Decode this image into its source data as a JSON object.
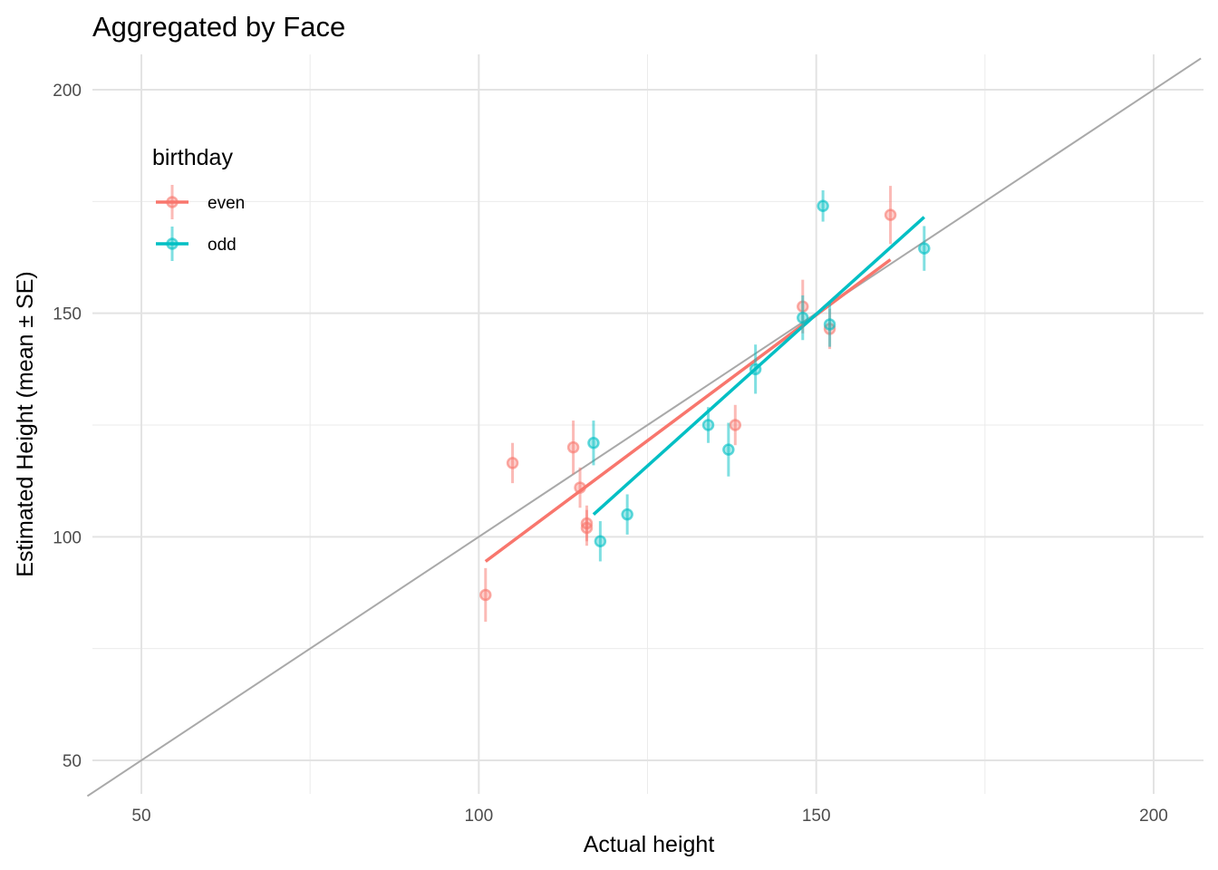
{
  "chart_data": {
    "type": "scatter",
    "title": "Aggregated by Face",
    "xlabel": "Actual height",
    "ylabel": "Estimated Height (mean ± SE)",
    "xlim": [
      42,
      207
    ],
    "ylim": [
      43,
      208
    ],
    "x_ticks": [
      50,
      100,
      150,
      200
    ],
    "y_ticks": [
      50,
      100,
      150,
      200
    ],
    "grid": true,
    "reference_line": "y = x",
    "legend": {
      "title": "birthday",
      "placement": "top-left"
    },
    "series": [
      {
        "name": "even",
        "color": "#F8766D",
        "points": [
          {
            "x": 101,
            "y": 87,
            "se": 6
          },
          {
            "x": 105,
            "y": 116.5,
            "se": 4.5
          },
          {
            "x": 114,
            "y": 120,
            "se": 6
          },
          {
            "x": 115,
            "y": 111,
            "se": 4.5
          },
          {
            "x": 116,
            "y": 103,
            "se": 4
          },
          {
            "x": 116,
            "y": 102,
            "se": 4
          },
          {
            "x": 138,
            "y": 125,
            "se": 4.5
          },
          {
            "x": 148,
            "y": 151.5,
            "se": 6
          },
          {
            "x": 152,
            "y": 146.5,
            "se": 4.5
          },
          {
            "x": 161,
            "y": 172,
            "se": 6.5
          }
        ],
        "fit": [
          [
            101,
            94.5
          ],
          [
            161,
            162
          ]
        ]
      },
      {
        "name": "odd",
        "color": "#00BFC4",
        "points": [
          {
            "x": 117,
            "y": 121,
            "se": 5
          },
          {
            "x": 118,
            "y": 99,
            "se": 4.5
          },
          {
            "x": 122,
            "y": 105,
            "se": 4.5
          },
          {
            "x": 134,
            "y": 125,
            "se": 4
          },
          {
            "x": 137,
            "y": 119.5,
            "se": 6
          },
          {
            "x": 141,
            "y": 137.5,
            "se": 5.5
          },
          {
            "x": 148,
            "y": 149,
            "se": 5
          },
          {
            "x": 151,
            "y": 174,
            "se": 3.5
          },
          {
            "x": 152,
            "y": 147.5,
            "se": 5
          },
          {
            "x": 166,
            "y": 164.5,
            "se": 5
          }
        ],
        "fit": [
          [
            117,
            105
          ],
          [
            166,
            171.5
          ]
        ]
      }
    ]
  }
}
